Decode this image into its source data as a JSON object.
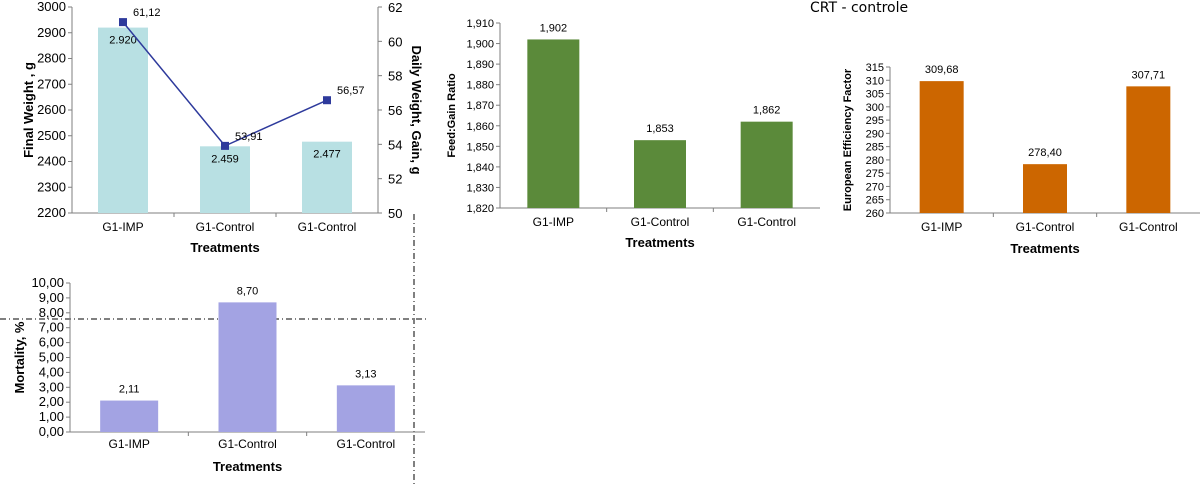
{
  "caption": "CRT - controle",
  "chart_data": [
    {
      "id": "weight",
      "type": "bar",
      "categories": [
        "G1-IMP",
        "G1-Control",
        "G1-Control"
      ],
      "series": [
        {
          "name": "",
          "values": [
            2920,
            2459,
            2477
          ],
          "labels": [
            "2.920",
            "2.459",
            "2.477"
          ],
          "color": "#b8e0e3"
        },
        {
          "name": "",
          "type": "line",
          "axis": "secondary",
          "values": [
            61.12,
            53.91,
            56.57
          ],
          "labels": [
            "61,12",
            "53,91",
            "56,57"
          ],
          "color": "#2e3a9c"
        }
      ],
      "xlabel": "Treatments",
      "ylabel": "Final Weight , g",
      "y2label": "Daily Weight, Gain, g",
      "ylim": [
        2200,
        3000
      ],
      "y2lim": [
        50,
        62
      ],
      "yticks": [
        "2200",
        "2300",
        "2400",
        "2500",
        "2600",
        "2700",
        "2800",
        "2900",
        "3000"
      ],
      "y2ticks": [
        "50",
        "52",
        "54",
        "56",
        "58",
        "60",
        "62"
      ]
    },
    {
      "id": "fcr",
      "type": "bar",
      "categories": [
        "G1-IMP",
        "G1-Control",
        "G1-Control"
      ],
      "values": [
        1.902,
        1.853,
        1.862
      ],
      "labels": [
        "1,902",
        "1,853",
        "1,862"
      ],
      "color": "#5b8a3a",
      "xlabel": "Treatments",
      "ylabel": "Feed:Gain Ratio",
      "ylim": [
        1.82,
        1.91
      ],
      "yticks": [
        "1,820",
        "1,830",
        "1,840",
        "1,850",
        "1,860",
        "1,870",
        "1,880",
        "1,890",
        "1,900",
        "1,910"
      ]
    },
    {
      "id": "epef",
      "type": "bar",
      "categories": [
        "G1-IMP",
        "G1-Control",
        "G1-Control"
      ],
      "values": [
        309.68,
        278.4,
        307.71
      ],
      "labels": [
        "309,68",
        "278,40",
        "307,71"
      ],
      "color": "#cc6600",
      "xlabel": "Treatments",
      "ylabel": "European Efficiency Factor",
      "ylim": [
        260,
        315
      ],
      "yticks": [
        "260",
        "265",
        "270",
        "275",
        "280",
        "285",
        "290",
        "295",
        "300",
        "305",
        "310",
        "315"
      ]
    },
    {
      "id": "mortality",
      "type": "bar",
      "categories": [
        "G1-IMP",
        "G1-Control",
        "G1-Control"
      ],
      "values": [
        2.11,
        8.7,
        3.13
      ],
      "labels": [
        "2,11",
        "8,70",
        "3,13"
      ],
      "color": "#a3a3e3",
      "xlabel": "Treatments",
      "ylabel": "Mortality, %",
      "ylim": [
        0,
        10
      ],
      "yticks": [
        "0,00",
        "1,00",
        "2,00",
        "3,00",
        "4,00",
        "5,00",
        "6,00",
        "7,00",
        "8,00",
        "9,00",
        "10,00"
      ]
    }
  ]
}
